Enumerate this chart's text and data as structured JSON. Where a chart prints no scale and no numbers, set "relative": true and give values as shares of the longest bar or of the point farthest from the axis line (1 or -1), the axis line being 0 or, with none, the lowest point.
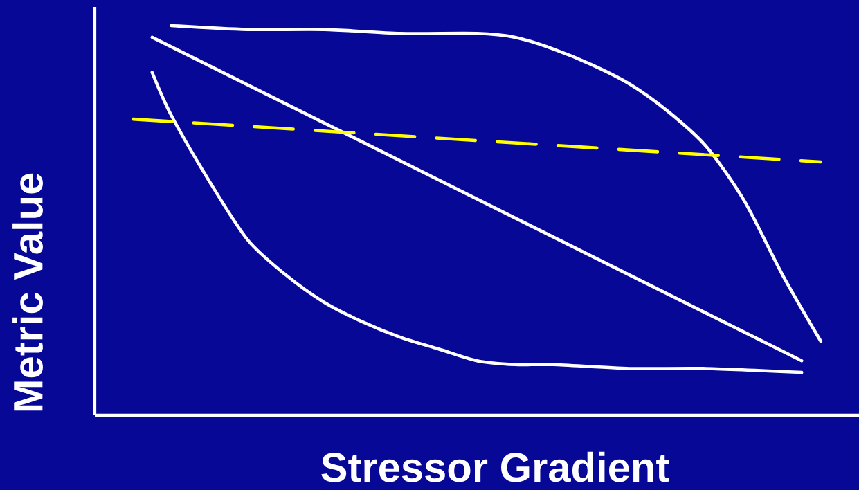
{
  "chart_data": {
    "type": "line",
    "relative": true,
    "xlabel": "Stressor Gradient",
    "ylabel": "Metric Value",
    "categories": [
      null,
      null,
      null,
      null,
      null,
      null,
      null,
      null,
      null,
      null,
      null,
      null,
      null,
      null,
      null,
      null,
      null,
      null,
      null,
      null,
      null,
      null,
      null,
      null,
      null,
      null,
      null,
      null,
      null,
      null,
      null,
      null,
      null,
      null,
      null,
      null,
      null,
      null,
      null,
      null,
      null
    ],
    "marker": "none",
    "series": [
      {
        "color": "#ffffff",
        "line_style": "solid",
        "values": [
          null,
          null,
          null,
          null,
          1.0,
          null,
          null,
          null,
          0.99,
          null,
          null,
          null,
          0.99,
          null,
          null,
          null,
          0.98,
          null,
          null,
          null,
          0.98,
          null,
          0.97,
          null,
          0.94,
          null,
          0.9,
          null,
          0.85,
          null,
          0.78,
          null,
          0.69,
          null,
          0.55,
          null,
          0.36,
          null,
          0.19,
          null,
          null
        ]
      },
      {
        "color": "#ffffff",
        "line_style": "solid",
        "values": [
          null,
          null,
          null,
          0.97,
          null,
          null,
          null,
          null,
          null,
          null,
          null,
          null,
          null,
          null,
          null,
          null,
          null,
          null,
          null,
          null,
          null,
          null,
          null,
          null,
          null,
          null,
          null,
          null,
          null,
          null,
          null,
          null,
          null,
          null,
          null,
          null,
          null,
          0.14,
          null,
          null,
          null
        ]
      },
      {
        "color": "#ffffff",
        "line_style": "solid",
        "values": [
          null,
          null,
          null,
          0.88,
          0.77,
          null,
          0.6,
          null,
          0.45,
          null,
          0.36,
          null,
          0.29,
          null,
          0.24,
          null,
          0.2,
          null,
          0.17,
          null,
          0.14,
          null,
          0.13,
          null,
          0.13,
          null,
          null,
          null,
          0.12,
          null,
          null,
          null,
          0.12,
          null,
          null,
          null,
          null,
          0.11,
          null,
          null,
          null
        ]
      },
      {
        "color": "#ffff00",
        "line_style": "dashed",
        "values": [
          null,
          null,
          0.76,
          null,
          null,
          null,
          null,
          null,
          null,
          null,
          null,
          null,
          null,
          null,
          null,
          null,
          null,
          null,
          null,
          null,
          null,
          null,
          null,
          null,
          null,
          null,
          null,
          null,
          null,
          null,
          null,
          null,
          null,
          null,
          null,
          null,
          null,
          null,
          0.65,
          null,
          null
        ]
      }
    ]
  }
}
